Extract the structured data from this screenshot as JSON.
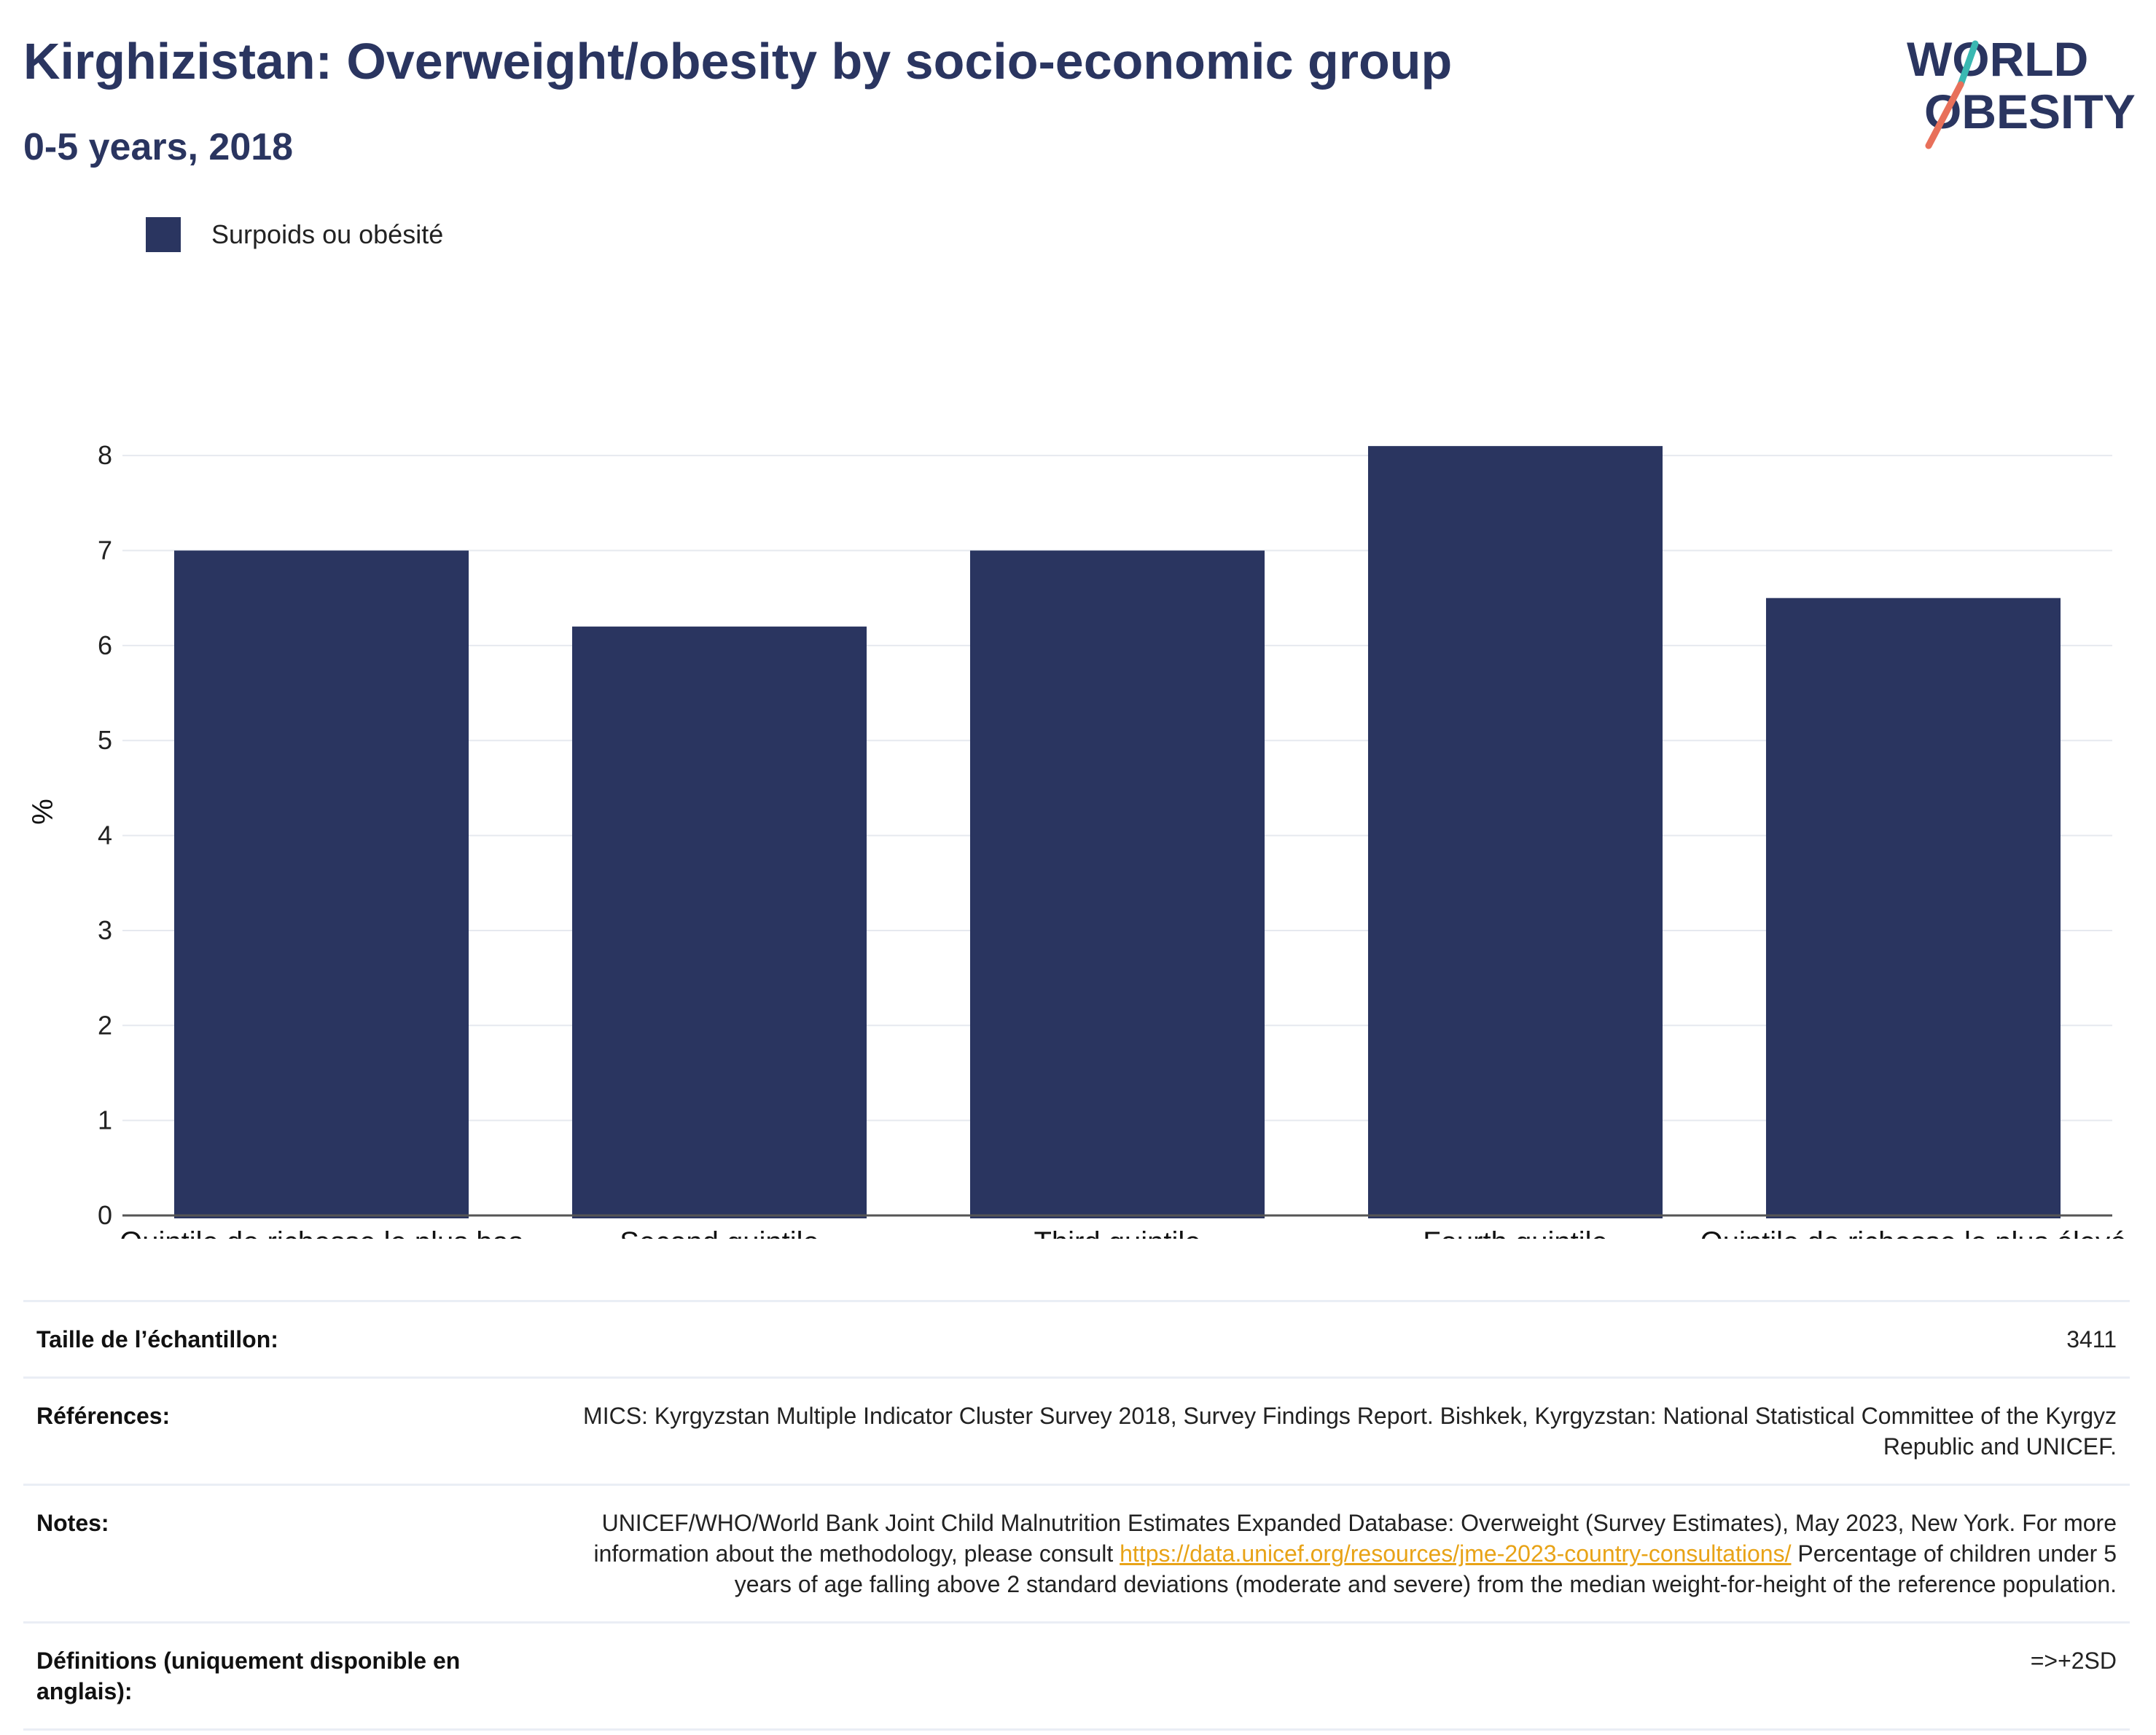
{
  "header": {
    "title": "Kirghizistan: Overweight/obesity by socio-economic group",
    "subtitle": "0-5 years, 2018",
    "logo_line1": "WORLD",
    "logo_line2": "OBESITY"
  },
  "colors": {
    "bar": "#2a3560",
    "title": "#2a3560",
    "grid": "#e6e9ef",
    "link": "#e8a317"
  },
  "chart_data": {
    "type": "bar",
    "title": "Kirghizistan: Overweight/obesity by socio-economic group",
    "subtitle": "0-5 years, 2018",
    "categories": [
      "Quintile de richesse le plus bas",
      "Second quintile",
      "Third quintile",
      "Fourth quintile",
      "Quintile de richesse le plus élevé"
    ],
    "series": [
      {
        "name": "Surpoids ou obésité",
        "values": [
          7.0,
          6.2,
          7.0,
          8.1,
          6.5
        ]
      }
    ],
    "xlabel": "",
    "ylabel": "%",
    "ylim": [
      0,
      8.5
    ],
    "yticks": [
      0,
      1,
      2,
      3,
      4,
      5,
      6,
      7,
      8
    ],
    "grid": true,
    "legend": "top-left"
  },
  "info": {
    "sample_label": "Taille de l’échantillon:",
    "sample_value": "3411",
    "references_label": "Références:",
    "references_value": "MICS: Kyrgyzstan Multiple Indicator Cluster Survey 2018, Survey Findings Report. Bishkek, Kyrgyzstan: National Statistical Committee of the Kyrgyz Republic and UNICEF.",
    "notes_label": "Notes:",
    "notes_text_1": "UNICEF/WHO/World Bank Joint Child Malnutrition Estimates Expanded Database: Overweight (Survey Estimates), May 2023, New York. For more information about the methodology, please consult ",
    "notes_link": "https://data.unicef.org/resources/jme-2023-country-consultations/",
    "notes_text_2": " Percentage of children under 5 years of age falling above 2 standard deviations (moderate and severe) from the median weight-for-height of the reference population.",
    "definitions_label": "Définitions (uniquement disponible en anglais):",
    "definitions_value": "=>+2SD"
  }
}
